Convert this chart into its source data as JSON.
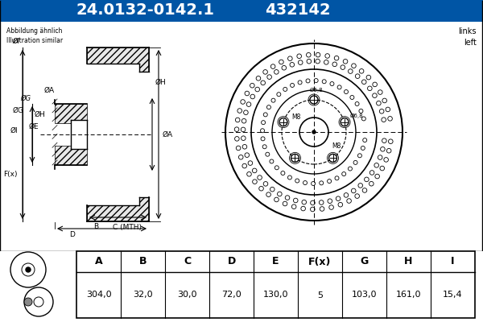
{
  "title_part": "24.0132-0142.1",
  "title_code": "432142",
  "title_bg": "#0055a5",
  "title_fg": "#ffffff",
  "note_left": "Abbildung ähnlich\nIllustration similar",
  "note_right": "links\nleft",
  "table_headers": [
    "A",
    "B",
    "C",
    "D",
    "E",
    "F(x)",
    "G",
    "H",
    "I"
  ],
  "table_values": [
    "304,0",
    "32,0",
    "30,0",
    "72,0",
    "130,0",
    "5",
    "103,0",
    "161,0",
    "15,4"
  ],
  "dim_labels_side": [
    "ØI",
    "ØG",
    "ØE",
    "ØH",
    "ØA",
    "F(x)",
    "B",
    "C (MTH)",
    "D"
  ],
  "line_color": "#000000",
  "bg_color": "#ffffff",
  "hatch_color": "#000000"
}
